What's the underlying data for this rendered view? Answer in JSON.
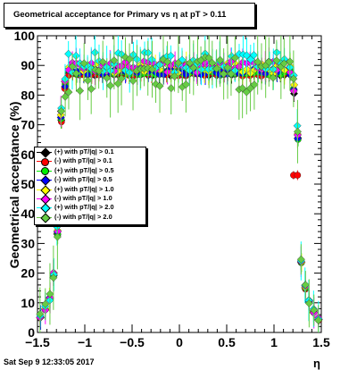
{
  "title": "Geometrical acceptance for Primary vs    η at pT > 0.11",
  "footer": "Sat Sep  9 12:33:05 2017",
  "chart_data": {
    "type": "scatter",
    "xlabel": "η",
    "ylabel": "Geometrical acceptance (%)",
    "xlim": [
      -1.5,
      1.5
    ],
    "ylim": [
      0,
      100
    ],
    "x_ticks": [
      "−1.5",
      "−1",
      "−0.5",
      "0",
      "0.5",
      "1",
      "1.5"
    ],
    "y_ticks": [
      "0",
      "10",
      "20",
      "30",
      "40",
      "50",
      "60",
      "70",
      "80",
      "90",
      "100"
    ],
    "legend_placement": "left-middle",
    "series": [
      {
        "name": "(+) with pT/|q| > 0.1",
        "color": "#000000",
        "marker": "diamond",
        "plateau": 87,
        "spread": 0.5
      },
      {
        "name": "(-) with pT/|q| > 0.1",
        "color": "#ff0000",
        "marker": "circle",
        "plateau": 87,
        "spread": 0.6
      },
      {
        "name": "(+) with pT/|q| > 0.5",
        "color": "#00ee00",
        "marker": "circle",
        "plateau": 87.5,
        "spread": 0.8
      },
      {
        "name": "(-) with pT/|q| > 0.5",
        "color": "#0000ff",
        "marker": "diamond",
        "plateau": 88,
        "spread": 1.2
      },
      {
        "name": "(+) with pT/|q| > 1.0",
        "color": "#ffff00",
        "marker": "diamond",
        "plateau": 89,
        "spread": 1.8
      },
      {
        "name": "(-) with pT/|q| > 1.0",
        "color": "#ff00ff",
        "marker": "diamond",
        "plateau": 89.5,
        "spread": 2.0
      },
      {
        "name": "(+) with pT/|q| > 2.0",
        "color": "#00ffff",
        "marker": "diamond",
        "plateau": 91,
        "spread": 3.5
      },
      {
        "name": "(-) with pT/|q| > 2.0",
        "color": "#66cc44",
        "marker": "diamond",
        "plateau": 87,
        "spread": 6.0
      }
    ],
    "edge_profile": {
      "eta": [
        -1.47,
        -1.42,
        -1.37,
        -1.33,
        -1.29,
        -1.25,
        -1.21,
        -1.17,
        1.17,
        1.21,
        1.25,
        1.29,
        1.33,
        1.37,
        1.42,
        1.47
      ],
      "acceptance_fraction": [
        0.06,
        0.09,
        0.13,
        0.22,
        0.38,
        0.82,
        0.95,
        1.0,
        1.0,
        0.93,
        0.75,
        0.27,
        0.17,
        0.12,
        0.08,
        0.05
      ]
    },
    "annotations": [
      {
        "series": "(-) with pT/|q| > 0.1",
        "eta": 1.23,
        "acceptance": 53
      }
    ]
  }
}
